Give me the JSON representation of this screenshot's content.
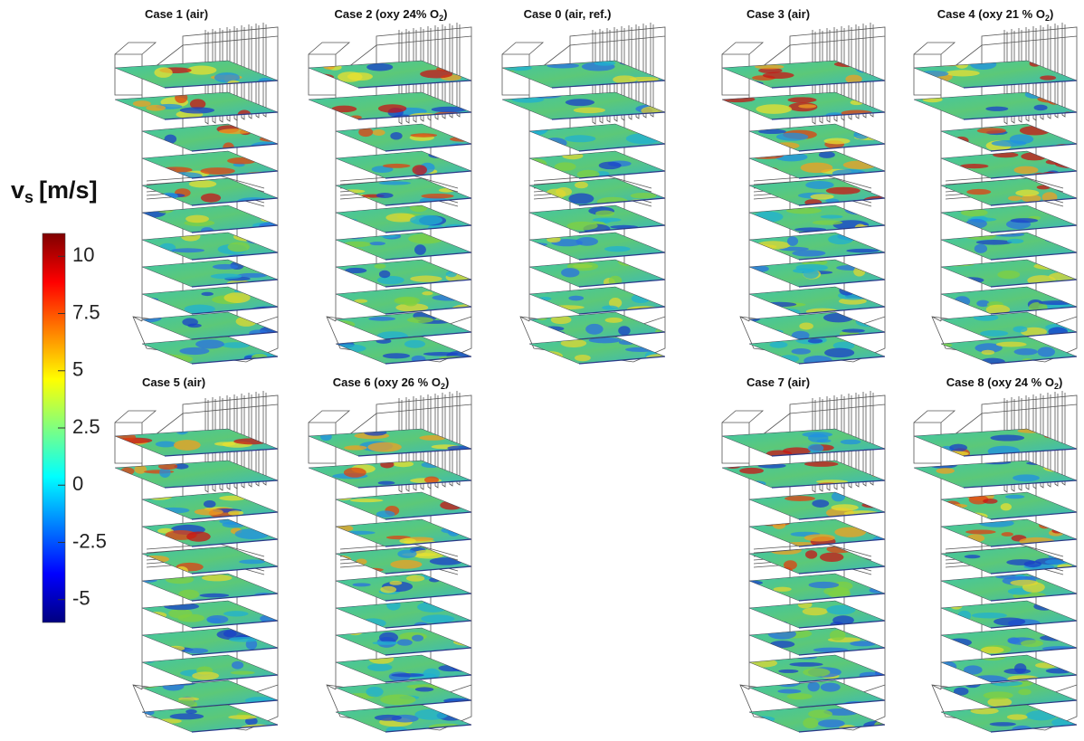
{
  "colorbar": {
    "label": {
      "symbol": "v",
      "sub": "s",
      "unit": "[m/s]"
    },
    "range": [
      -6,
      11
    ],
    "ticks": [
      10,
      7.5,
      5,
      2.5,
      0,
      -2.5,
      -5
    ]
  },
  "panels": [
    {
      "title": {
        "text": "Case 1 (air)"
      }
    },
    {
      "title": {
        "text": "Case 2 (oxy 24% O",
        "sub": "2",
        "tail": ")"
      }
    },
    {
      "title": {
        "text": "Case 0 (air, ref.)"
      }
    },
    {
      "title": {
        "text": "Case 3 (air)"
      }
    },
    {
      "title": {
        "text": "Case 4 (oxy 21 % O",
        "sub": "2",
        "tail": ")"
      }
    },
    {
      "title": {
        "text": "Case 5 (air)"
      }
    },
    {
      "title": {
        "text": "Case 6 (oxy 26 % O",
        "sub": "2",
        "tail": ")"
      }
    },
    {
      "title": {
        "text": "Case 7 (air)"
      }
    },
    {
      "title": {
        "text": "Case 8 (oxy 24 % O",
        "sub": "2",
        "tail": ")"
      }
    }
  ]
}
